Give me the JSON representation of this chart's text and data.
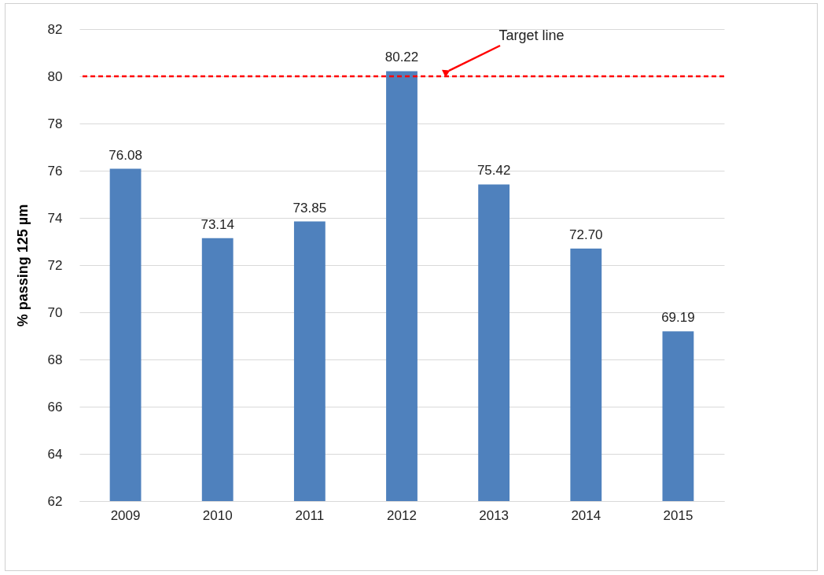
{
  "chart_data": {
    "type": "bar",
    "ylabel": "% passing 125 µm",
    "categories": [
      "2009",
      "2010",
      "2011",
      "2012",
      "2013",
      "2014",
      "2015"
    ],
    "values": [
      76.08,
      73.14,
      73.85,
      80.22,
      75.42,
      72.7,
      69.19
    ],
    "value_labels": [
      "76.08",
      "73.14",
      "73.85",
      "80.22",
      "75.42",
      "72.70",
      "69.19"
    ],
    "color": "#4f81bd",
    "ylim": [
      62,
      82
    ],
    "yticks": [
      62,
      64,
      66,
      68,
      70,
      72,
      74,
      76,
      78,
      80,
      82
    ],
    "grid": "y",
    "ref_lines": [
      {
        "axis": "y",
        "value": 80,
        "label": "Target line",
        "color": "#ff0000",
        "line_style": "dashed"
      }
    ]
  }
}
